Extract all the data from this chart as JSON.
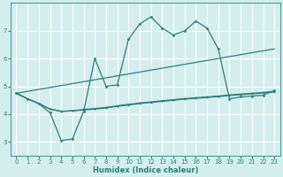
{
  "title": "",
  "xlabel": "Humidex (Indice chaleur)",
  "bg_color": "#d4eeee",
  "grid_color": "#ffffff",
  "line_color": "#2d7d7d",
  "xlim": [
    -0.5,
    23.5
  ],
  "ylim": [
    2.5,
    8.0
  ],
  "xticks": [
    0,
    1,
    2,
    3,
    4,
    5,
    6,
    7,
    8,
    9,
    10,
    11,
    12,
    13,
    14,
    15,
    16,
    17,
    18,
    19,
    20,
    21,
    22,
    23
  ],
  "yticks": [
    3,
    4,
    5,
    6,
    7
  ],
  "curve_x": [
    0,
    1,
    2,
    3,
    4,
    5,
    6,
    7,
    8,
    9,
    10,
    11,
    12,
    13,
    14,
    15,
    16,
    17,
    18,
    19,
    20,
    21,
    22,
    23
  ],
  "curve_y": [
    4.75,
    4.55,
    4.38,
    4.05,
    3.05,
    3.1,
    4.1,
    6.0,
    5.0,
    5.05,
    6.7,
    7.25,
    7.5,
    7.1,
    6.85,
    7.0,
    7.35,
    7.1,
    6.35,
    4.55,
    4.62,
    4.65,
    4.68,
    4.85
  ],
  "trend1_x": [
    0,
    23
  ],
  "trend1_y": [
    4.75,
    6.35
  ],
  "flat1_x": [
    0,
    1,
    2,
    3,
    4,
    5,
    6,
    7,
    8,
    9,
    10,
    11,
    12,
    13,
    14,
    15,
    16,
    17,
    18,
    19,
    20,
    21,
    22,
    23
  ],
  "flat1_y": [
    4.75,
    4.55,
    4.38,
    4.18,
    4.1,
    4.12,
    4.15,
    4.18,
    4.22,
    4.28,
    4.33,
    4.38,
    4.42,
    4.46,
    4.5,
    4.54,
    4.57,
    4.6,
    4.63,
    4.67,
    4.7,
    4.73,
    4.76,
    4.8
  ],
  "flat2_x": [
    0,
    1,
    2,
    3,
    4,
    5,
    6,
    7,
    8,
    9,
    10,
    11,
    12,
    13,
    14,
    15,
    16,
    17,
    18,
    19,
    20,
    21,
    22,
    23
  ],
  "flat2_y": [
    4.75,
    4.55,
    4.38,
    4.18,
    4.1,
    4.12,
    4.17,
    4.2,
    4.24,
    4.3,
    4.35,
    4.4,
    4.44,
    4.48,
    4.52,
    4.56,
    4.59,
    4.62,
    4.65,
    4.69,
    4.72,
    4.75,
    4.78,
    4.82
  ]
}
